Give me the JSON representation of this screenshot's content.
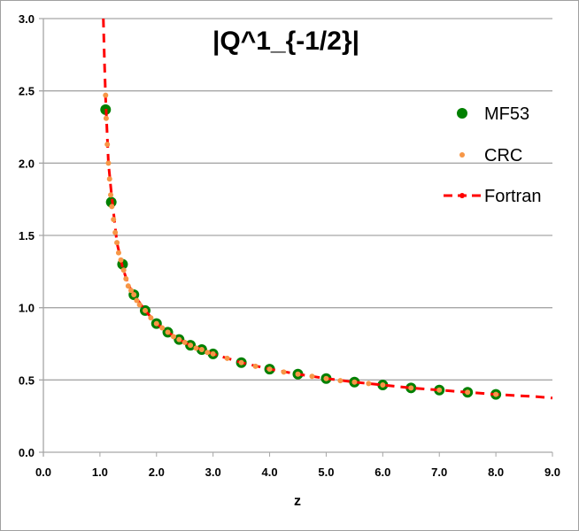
{
  "chart_data": {
    "type": "scatter",
    "title": "|Q^1_{-1/2}|",
    "xlabel": "z",
    "ylabel": "",
    "xlim": [
      0,
      9
    ],
    "ylim": [
      0,
      3
    ],
    "xticks": [
      "0.0",
      "1.0",
      "2.0",
      "3.0",
      "4.0",
      "5.0",
      "6.0",
      "7.0",
      "8.0",
      "9.0"
    ],
    "yticks": [
      "0.0",
      "0.5",
      "1.0",
      "1.5",
      "2.0",
      "2.5",
      "3.0"
    ],
    "grid": "horizontal",
    "legend_position": "right",
    "series": [
      {
        "name": "MF53",
        "color": "#008000",
        "style": "large-dot",
        "x": [
          1.1,
          1.2,
          1.4,
          1.6,
          1.8,
          2.0,
          2.2,
          2.4,
          2.6,
          2.8,
          3.0,
          3.5,
          4.0,
          4.5,
          5.0,
          5.5,
          6.0,
          6.5,
          7.0,
          7.5,
          8.0
        ],
        "y": [
          2.37,
          1.73,
          1.3,
          1.09,
          0.98,
          0.89,
          0.83,
          0.78,
          0.74,
          0.71,
          0.68,
          0.62,
          0.575,
          0.54,
          0.51,
          0.485,
          0.465,
          0.445,
          0.43,
          0.415,
          0.4
        ]
      },
      {
        "name": "CRC",
        "color": "#f79646",
        "style": "small-dot",
        "x": [
          1.1,
          1.11,
          1.13,
          1.15,
          1.17,
          1.19,
          1.21,
          1.24,
          1.27,
          1.3,
          1.33,
          1.37,
          1.42,
          1.46,
          1.5,
          1.55,
          1.6,
          1.65,
          1.7,
          1.8,
          1.9,
          2.0,
          2.1,
          2.2,
          2.3,
          2.4,
          2.5,
          2.6,
          2.7,
          2.8,
          2.9,
          3.0,
          3.25,
          3.5,
          3.75,
          4.0,
          4.25,
          4.5,
          4.75,
          5.0,
          5.25,
          5.5,
          5.75,
          6.0,
          6.5,
          7.0,
          7.5,
          8.0
        ],
        "y": [
          2.47,
          2.31,
          2.13,
          2.0,
          1.89,
          1.78,
          1.7,
          1.61,
          1.52,
          1.45,
          1.38,
          1.33,
          1.26,
          1.2,
          1.15,
          1.12,
          1.09,
          1.05,
          1.02,
          0.98,
          0.93,
          0.89,
          0.86,
          0.83,
          0.8,
          0.78,
          0.76,
          0.74,
          0.72,
          0.71,
          0.69,
          0.68,
          0.65,
          0.62,
          0.595,
          0.575,
          0.555,
          0.54,
          0.525,
          0.51,
          0.495,
          0.485,
          0.475,
          0.465,
          0.445,
          0.43,
          0.415,
          0.4
        ]
      },
      {
        "name": "Fortran",
        "color": "#ff0000",
        "style": "dashed-line",
        "x": [
          1.06,
          1.08,
          1.1,
          1.15,
          1.2,
          1.3,
          1.4,
          1.5,
          1.6,
          1.8,
          2.0,
          2.2,
          2.4,
          2.6,
          2.8,
          3.0,
          3.5,
          4.0,
          4.5,
          5.0,
          5.5,
          6.0,
          6.5,
          7.0,
          7.5,
          8.0,
          8.7,
          9.0
        ],
        "y": [
          3.0,
          2.7,
          2.45,
          2.0,
          1.8,
          1.45,
          1.28,
          1.16,
          1.09,
          0.98,
          0.89,
          0.83,
          0.78,
          0.74,
          0.71,
          0.68,
          0.62,
          0.575,
          0.54,
          0.51,
          0.485,
          0.465,
          0.445,
          0.43,
          0.415,
          0.4,
          0.385,
          0.375
        ]
      }
    ]
  }
}
